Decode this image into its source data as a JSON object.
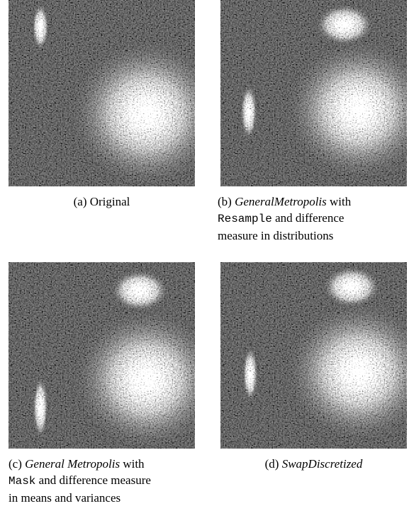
{
  "panels": [
    {
      "lines": [
        [
          {
            "text": "(a) Original"
          }
        ]
      ],
      "align": "center"
    },
    {
      "lines": [
        [
          {
            "text": "(b) "
          },
          {
            "text": "GeneralMetropolis",
            "style": "italic"
          },
          {
            "text": " with"
          }
        ],
        [
          {
            "text": "Resample",
            "style": "mono"
          },
          {
            "text": " and difference"
          }
        ],
        [
          {
            "text": "measure in distributions"
          }
        ]
      ],
      "align": "left"
    },
    {
      "lines": [
        [
          {
            "text": "(c) "
          },
          {
            "text": "General Metropolis",
            "style": "italic"
          },
          {
            "text": " with"
          }
        ],
        [
          {
            "text": "Mask",
            "style": "mono"
          },
          {
            "text": " and difference measure"
          }
        ],
        [
          {
            "text": "in means and variances"
          }
        ]
      ],
      "align": "left"
    },
    {
      "lines": [
        [
          {
            "text": "(d) "
          },
          {
            "text": "SwapDiscretized",
            "style": "italic"
          }
        ]
      ],
      "align": "center"
    }
  ]
}
